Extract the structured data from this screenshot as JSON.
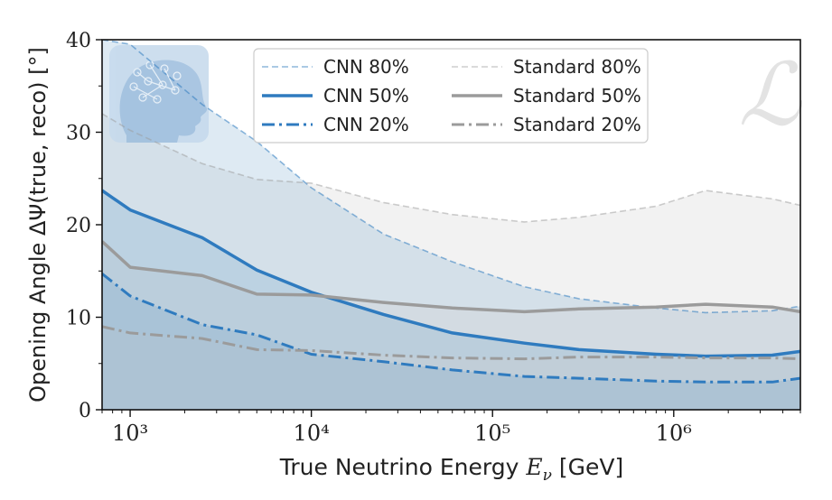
{
  "chart_data": {
    "type": "area",
    "xlabel": "True Neutrino Energy E_ν [GeV]",
    "ylabel": "Opening Angle ΔΨ(true, reco) [°]",
    "xscale": "log",
    "xlim": [
      700,
      5000000
    ],
    "ylim": [
      0,
      40
    ],
    "x_ticks": [
      1000,
      10000,
      100000,
      1000000
    ],
    "x_tick_labels": [
      "10³",
      "10⁴",
      "10⁵",
      "10⁶"
    ],
    "y_ticks": [
      0,
      10,
      20,
      30,
      40
    ],
    "y_tick_labels": [
      "0",
      "10",
      "20",
      "30",
      "40"
    ],
    "legend_position": "top-center",
    "colors": {
      "cnn": "#2f7bbf",
      "cnn_fill": "#6b9ec9",
      "standard": "#9b9b9b",
      "standard_fill": "#cfcfcf"
    },
    "series": [
      {
        "name": "CNN 80%",
        "style": "dashed-light",
        "group": "cnn",
        "x": [
          700,
          1000,
          2500,
          5000,
          10000,
          25000,
          60000,
          150000,
          300000,
          800000,
          1500000,
          3500000,
          5000000
        ],
        "values": [
          40,
          39.5,
          33,
          29,
          24,
          19,
          16,
          13.3,
          12,
          11,
          10.5,
          10.7,
          11.2
        ]
      },
      {
        "name": "CNN 50%",
        "style": "solid",
        "group": "cnn",
        "x": [
          700,
          1000,
          2500,
          5000,
          10000,
          25000,
          60000,
          150000,
          300000,
          800000,
          1500000,
          3500000,
          5000000
        ],
        "values": [
          23.7,
          21.6,
          18.6,
          15.1,
          12.7,
          10.3,
          8.3,
          7.2,
          6.5,
          6.0,
          5.8,
          5.9,
          6.3
        ]
      },
      {
        "name": "CNN 20%",
        "style": "dashdot",
        "group": "cnn",
        "x": [
          700,
          1000,
          2500,
          5000,
          10000,
          25000,
          60000,
          150000,
          300000,
          800000,
          1500000,
          3500000,
          5000000
        ],
        "values": [
          14.7,
          12.3,
          9.2,
          8.1,
          6.0,
          5.2,
          4.3,
          3.6,
          3.4,
          3.1,
          3.0,
          3.0,
          3.4
        ]
      },
      {
        "name": "Standard 80%",
        "style": "dashed-light",
        "group": "standard",
        "x": [
          700,
          1000,
          2500,
          5000,
          10000,
          25000,
          60000,
          150000,
          300000,
          800000,
          1500000,
          3500000,
          5000000
        ],
        "values": [
          32,
          30.2,
          26.6,
          24.9,
          24.5,
          22.4,
          21.1,
          20.3,
          20.8,
          22.0,
          23.7,
          22.8,
          22.1
        ]
      },
      {
        "name": "Standard 50%",
        "style": "solid",
        "group": "standard",
        "x": [
          700,
          1000,
          2500,
          5000,
          10000,
          25000,
          60000,
          150000,
          300000,
          800000,
          1500000,
          3500000,
          5000000
        ],
        "values": [
          18.2,
          15.4,
          14.5,
          12.5,
          12.4,
          11.6,
          11.0,
          10.6,
          10.9,
          11.1,
          11.4,
          11.1,
          10.6
        ]
      },
      {
        "name": "Standard 20%",
        "style": "dashdot",
        "group": "standard",
        "x": [
          700,
          1000,
          2500,
          5000,
          10000,
          25000,
          60000,
          150000,
          300000,
          800000,
          1500000,
          3500000,
          5000000
        ],
        "values": [
          9.0,
          8.3,
          7.7,
          6.5,
          6.4,
          5.9,
          5.6,
          5.5,
          5.7,
          5.7,
          5.6,
          5.6,
          5.5
        ]
      }
    ],
    "watermark_glyph": "ℒ"
  }
}
